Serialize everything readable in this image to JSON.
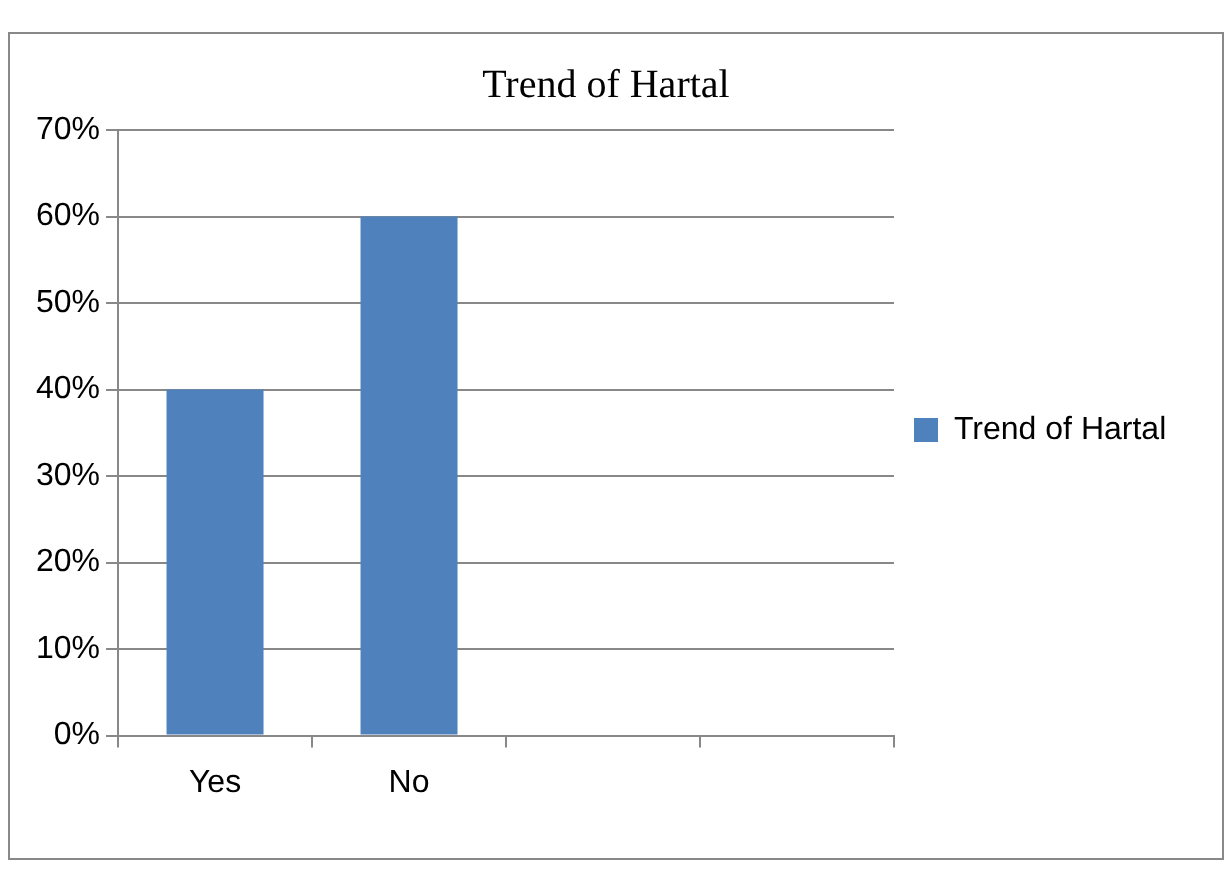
{
  "chart_data": {
    "type": "bar",
    "title": "Trend of Hartal",
    "categories": [
      "Yes",
      "No",
      null,
      null
    ],
    "series": [
      {
        "name": "Trend of Hartal",
        "color": "#4f81bd",
        "values": [
          40,
          60,
          null,
          null
        ]
      }
    ],
    "ylim": [
      0,
      70
    ],
    "yticks": [
      {
        "value": 0,
        "label": "0%"
      },
      {
        "value": 10,
        "label": "10%"
      },
      {
        "value": 20,
        "label": "20%"
      },
      {
        "value": 30,
        "label": "30%"
      },
      {
        "value": 40,
        "label": "40%"
      },
      {
        "value": 50,
        "label": "50%"
      },
      {
        "value": 60,
        "label": "60%"
      },
      {
        "value": 70,
        "label": "70%"
      }
    ],
    "grid": "y",
    "legend": "right"
  }
}
